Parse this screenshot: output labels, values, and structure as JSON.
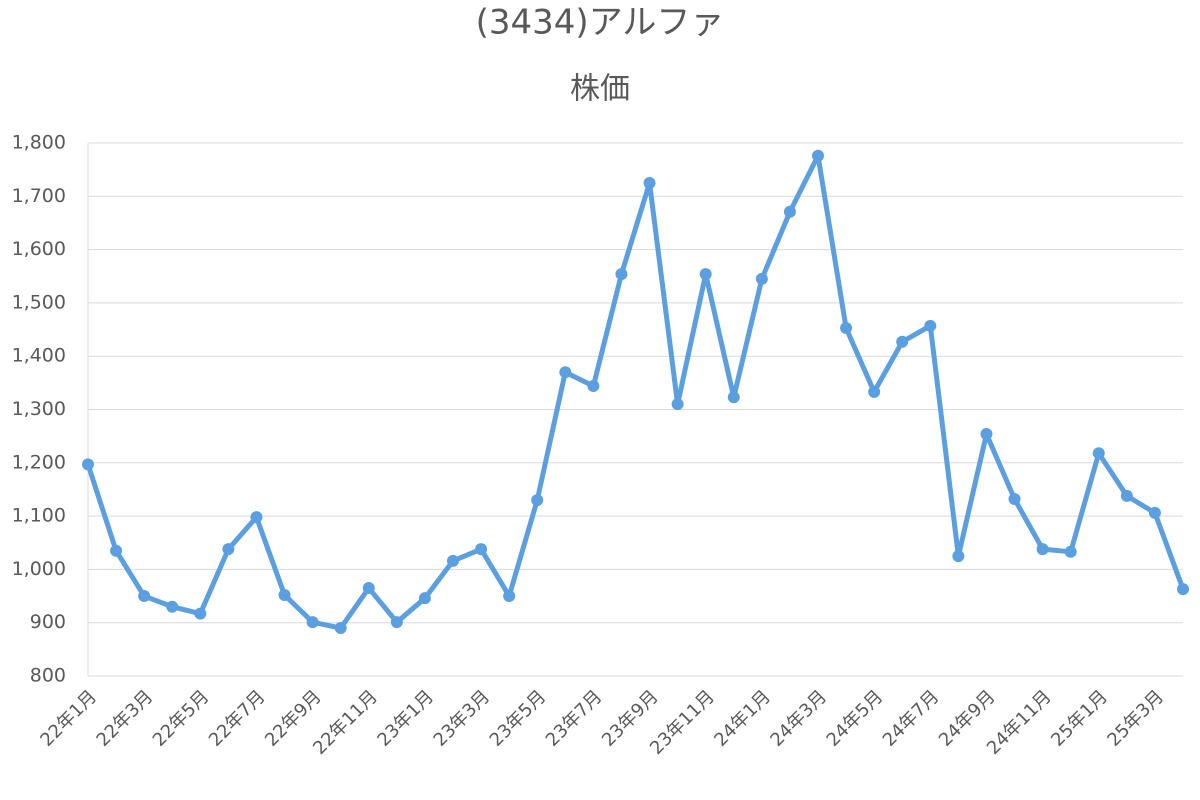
{
  "chart_data": {
    "type": "line",
    "title": "(3434)アルファ",
    "subtitle": "株価",
    "categories": [
      "22年1月",
      null,
      "22年3月",
      null,
      "22年5月",
      null,
      "22年7月",
      null,
      "22年9月",
      null,
      "22年11月",
      null,
      "23年1月",
      null,
      "23年3月",
      null,
      "23年5月",
      null,
      "23年7月",
      null,
      "23年9月",
      null,
      "23年11月",
      null,
      "24年1月",
      null,
      "24年3月",
      null,
      "24年5月",
      null,
      "24年7月",
      null,
      "24年9月",
      null,
      "24年11月",
      null,
      "25年1月",
      null,
      "25年3月",
      null
    ],
    "series": [
      {
        "color": "#5b9fe0",
        "values": [
          1197,
          1035,
          950,
          930,
          917,
          1038,
          1098,
          952,
          901,
          890,
          965,
          901,
          946,
          1016,
          1038,
          950,
          1130,
          1370,
          1344,
          1554,
          1725,
          1310,
          1554,
          1323,
          1545,
          1671,
          1776,
          1453,
          1333,
          1427,
          1457,
          1025,
          1254,
          1132,
          1038,
          1033,
          1218,
          1138,
          1106,
          963
        ]
      }
    ],
    "ylim": [
      800,
      1800
    ],
    "yticks": [
      800,
      900,
      {
        "value": 1000,
        "label": "1,000"
      },
      {
        "value": 1100,
        "label": "1,100"
      },
      {
        "value": 1200,
        "label": "1,200"
      },
      {
        "value": 1300,
        "label": "1,300"
      },
      {
        "value": 1400,
        "label": "1,400"
      },
      {
        "value": 1500,
        "label": "1,500"
      },
      {
        "value": 1600,
        "label": "1,600"
      },
      {
        "value": 1700,
        "label": "1,700"
      },
      {
        "value": 1800,
        "label": "1,800"
      }
    ],
    "grid": true
  }
}
